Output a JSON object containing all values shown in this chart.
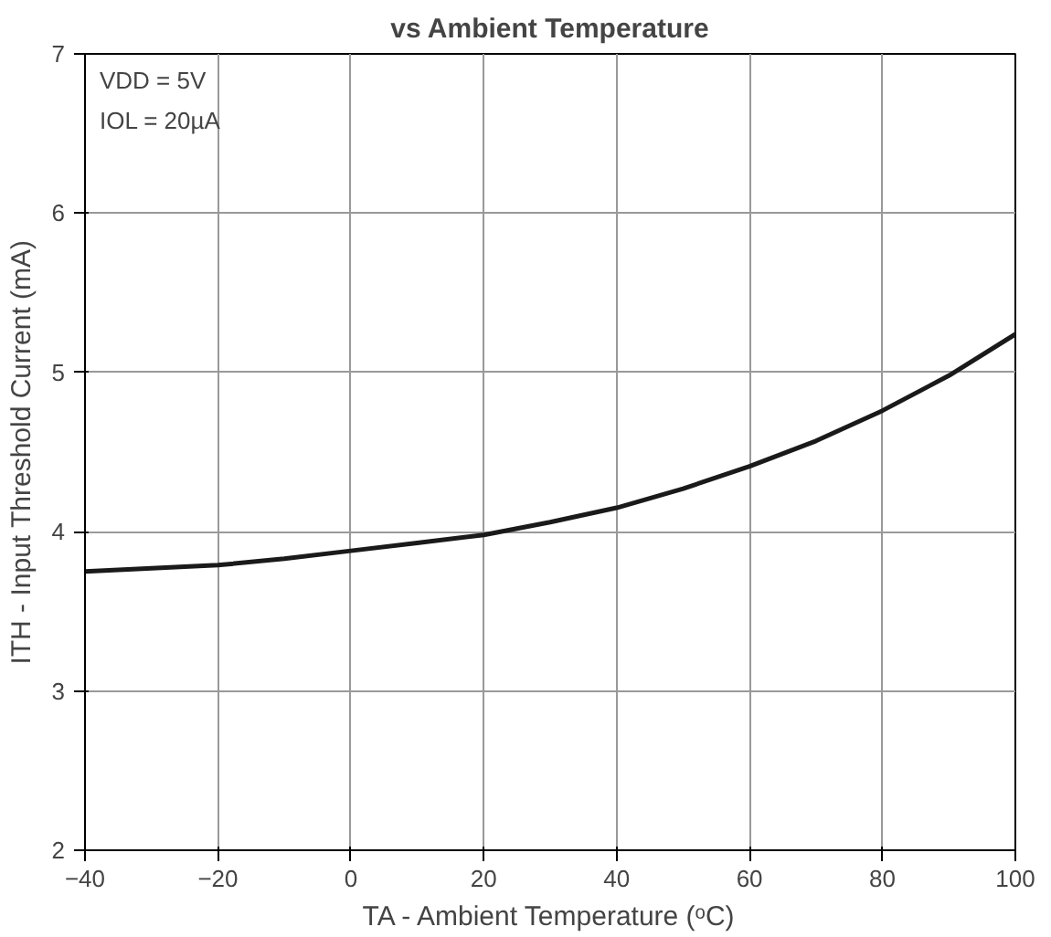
{
  "chart_data": {
    "type": "line",
    "title": "vs Ambient Temperature",
    "xlabel": "TA - Ambient Temperature (ᵒC)",
    "ylabel": "ITH - Input Threshold Current (mA)",
    "annotations": [
      "VDD = 5V",
      "IOL = 20µA"
    ],
    "x": [
      -40,
      -30,
      -20,
      -10,
      0,
      10,
      20,
      30,
      40,
      50,
      60,
      70,
      80,
      90,
      100
    ],
    "series": [
      {
        "color": "#1a1a1a",
        "values": [
          3.75,
          3.77,
          3.79,
          3.83,
          3.88,
          3.93,
          3.98,
          4.06,
          4.15,
          4.27,
          4.41,
          4.57,
          4.76,
          4.98,
          5.24
        ]
      }
    ],
    "xlim": [
      -40,
      100
    ],
    "ylim": [
      2,
      7
    ],
    "xticks": [
      -40,
      -20,
      0,
      20,
      40,
      60,
      80,
      100
    ],
    "yticks": [
      2,
      3,
      4,
      5,
      6,
      7
    ],
    "grid": true,
    "marker": "none",
    "line_style": "solid"
  }
}
